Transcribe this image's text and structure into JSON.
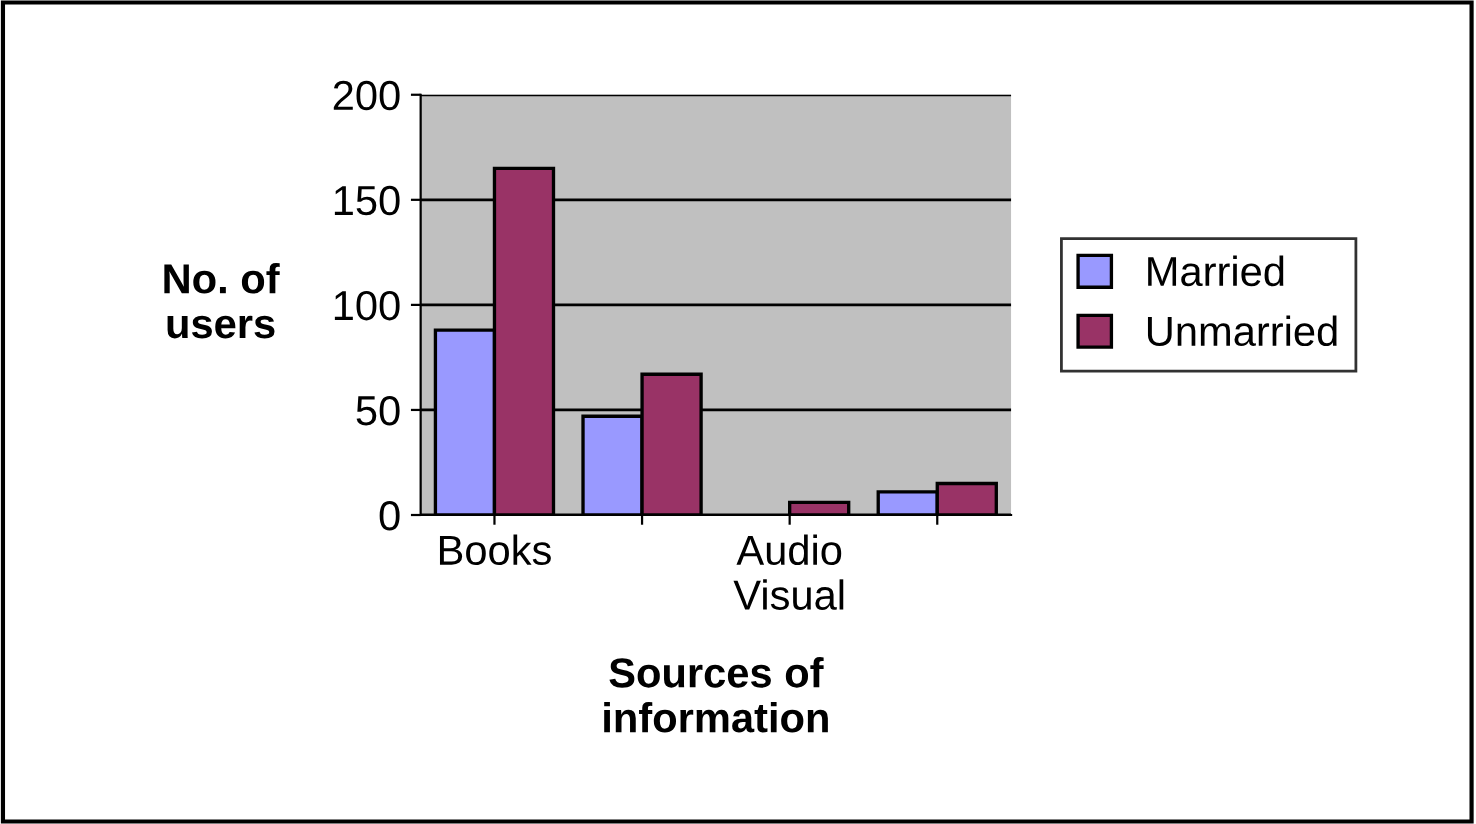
{
  "chart_data": {
    "type": "bar",
    "xlabel": "Sources of\ninformation",
    "ylabel": "No. of\nusers",
    "categories": [
      "Books",
      null,
      "Audio\nVisual",
      null
    ],
    "series": [
      {
        "name": "Married",
        "color": "#9999ff",
        "values": [
          88,
          47,
          null,
          11
        ]
      },
      {
        "name": "Unmarried",
        "color": "#993366",
        "values": [
          165,
          67,
          6,
          15
        ]
      }
    ],
    "ylim": [
      0,
      200
    ],
    "yticks": [
      0,
      50,
      100,
      150,
      200
    ],
    "grid": "y",
    "legend": "right"
  }
}
